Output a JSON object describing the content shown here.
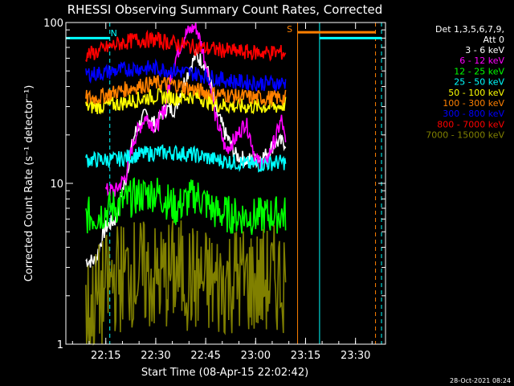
{
  "chart_data": {
    "type": "line",
    "title": "RHESSI Observing Summary Count Rates, Corrected",
    "xlabel": "Start Time (08-Apr-15 22:02:42)",
    "ylabel": "Corrected Count Rate (s⁻¹ detector⁻¹)",
    "yscale": "log",
    "ylim": [
      1,
      100
    ],
    "xlim_minutes": [
      22.05,
      23.65
    ],
    "x_unit": "hours",
    "x_ticks": [
      {
        "v": 22.25,
        "label": "22:15"
      },
      {
        "v": 22.5,
        "label": "22:30"
      },
      {
        "v": 22.75,
        "label": "22:45"
      },
      {
        "v": 23.0,
        "label": "23:00"
      },
      {
        "v": 23.25,
        "label": "23:15"
      },
      {
        "v": 23.5,
        "label": "23:30"
      }
    ],
    "y_ticks": [
      {
        "v": 1,
        "label": "1"
      },
      {
        "v": 10,
        "label": "10"
      },
      {
        "v": 100,
        "label": "100"
      }
    ],
    "legend_header": [
      "Det 1,3,5,6,7,9,",
      "Att 0"
    ],
    "legend_placement": "top-right",
    "grid": false,
    "series": [
      {
        "name": "3 - 6 keV",
        "color": "#ffffff",
        "x": [
          22.15,
          22.2,
          22.25,
          22.3,
          22.35,
          22.4,
          22.45,
          22.5,
          22.55,
          22.6,
          22.65,
          22.7,
          22.75,
          22.8,
          22.85,
          22.9,
          22.95,
          23.0,
          23.05,
          23.1,
          23.15
        ],
        "y": [
          3.3,
          3.3,
          5.3,
          6.0,
          10.5,
          21,
          27,
          23,
          29,
          29,
          45,
          62,
          55,
          28,
          20,
          15,
          14,
          14,
          15,
          18,
          18
        ]
      },
      {
        "name": "6 - 12 keV",
        "color": "#ff00ff",
        "x": [
          22.25,
          22.3,
          22.35,
          22.4,
          22.45,
          22.5,
          22.55,
          22.6,
          22.65,
          22.7,
          22.75,
          22.8,
          22.85,
          22.9,
          22.95,
          23.0,
          23.05,
          23.1,
          23.13,
          23.15
        ],
        "y": [
          9,
          9,
          11,
          20,
          26,
          22,
          30,
          60,
          85,
          95,
          55,
          25,
          16,
          19,
          24,
          14,
          13,
          19,
          25,
          17
        ]
      },
      {
        "name": "12 - 25 keV",
        "color": "#00ff00",
        "x": [
          22.15,
          22.2,
          22.3,
          22.4,
          22.5,
          22.6,
          22.7,
          22.8,
          22.9,
          23.0,
          23.1,
          23.15
        ],
        "y": [
          6.3,
          6.3,
          7.2,
          8.3,
          8.8,
          7.0,
          8.5,
          6.6,
          6.3,
          6.2,
          6.4,
          6.4
        ]
      },
      {
        "name": "25 - 50 keV",
        "color": "#00ffff",
        "x": [
          22.15,
          22.2,
          22.3,
          22.4,
          22.5,
          22.6,
          22.7,
          22.8,
          22.9,
          23.0,
          23.1,
          23.15
        ],
        "y": [
          14,
          14,
          14,
          15,
          15.5,
          15.5,
          15,
          14,
          13.5,
          13,
          13.5,
          13.5
        ]
      },
      {
        "name": "50 - 100 keV",
        "color": "#ffff00",
        "x": [
          22.15,
          22.2,
          22.3,
          22.4,
          22.5,
          22.6,
          22.7,
          22.8,
          22.9,
          23.0,
          23.1,
          23.15
        ],
        "y": [
          30,
          30,
          31,
          33,
          35,
          34,
          35,
          31,
          30,
          30,
          30,
          31
        ]
      },
      {
        "name": "100 - 300 keV",
        "color": "#ff8000",
        "x": [
          22.15,
          22.2,
          22.3,
          22.4,
          22.5,
          22.6,
          22.7,
          22.8,
          22.9,
          23.0,
          23.1,
          23.15
        ],
        "y": [
          34,
          34,
          37,
          40,
          42,
          41,
          38,
          36,
          35,
          34,
          34,
          34
        ]
      },
      {
        "name": "300 - 800 keV",
        "color": "#0000ff",
        "x": [
          22.15,
          22.2,
          22.3,
          22.4,
          22.5,
          22.6,
          22.7,
          22.8,
          22.9,
          23.0,
          23.1,
          23.15
        ],
        "y": [
          48,
          48,
          50,
          52,
          52,
          50,
          48,
          45,
          43,
          42,
          42,
          42
        ]
      },
      {
        "name": "800 - 7000 keV",
        "color": "#ff0000",
        "x": [
          22.15,
          22.2,
          22.3,
          22.4,
          22.5,
          22.6,
          22.7,
          22.8,
          22.9,
          23.0,
          23.1,
          23.15
        ],
        "y": [
          63,
          65,
          73,
          78,
          78,
          74,
          70,
          68,
          66,
          65,
          65,
          65
        ]
      },
      {
        "name": "7000 - 15000 keV",
        "color": "#808000",
        "x": [
          22.15,
          22.2,
          22.3,
          22.4,
          22.5,
          22.6,
          22.7,
          22.8,
          22.9,
          23.0,
          23.1,
          23.15
        ],
        "y": [
          1.5,
          1.8,
          2.6,
          2.8,
          2.5,
          2.8,
          2.5,
          2.3,
          2.6,
          2.4,
          2.5,
          2.6
        ]
      }
    ],
    "annotations": [
      {
        "text": "N",
        "x": 22.29,
        "y": 82,
        "color": "#00ffff"
      },
      {
        "text": "S",
        "x": 23.17,
        "y": 87,
        "color": "#ff8000"
      }
    ],
    "vlines": [
      {
        "x": 22.05,
        "color": "#00ffff",
        "style": "solid"
      },
      {
        "x": 22.27,
        "color": "#00ffff",
        "style": "dashed"
      },
      {
        "x": 23.21,
        "color": "#ff8000",
        "style": "solid"
      },
      {
        "x": 23.32,
        "color": "#00ffff",
        "style": "solid"
      },
      {
        "x": 23.6,
        "color": "#ff8000",
        "style": "dashed"
      },
      {
        "x": 23.63,
        "color": "#00ffff",
        "style": "dashed"
      }
    ],
    "hsegments": [
      {
        "x1": 22.05,
        "x2": 22.27,
        "y": 80,
        "color": "#00ffff"
      },
      {
        "x1": 23.21,
        "x2": 23.6,
        "y": 87,
        "color": "#ff8000"
      },
      {
        "x1": 23.32,
        "x2": 23.63,
        "y": 80,
        "color": "#00ffff"
      }
    ],
    "footer_timestamp": "28-Oct-2021 08:24"
  }
}
